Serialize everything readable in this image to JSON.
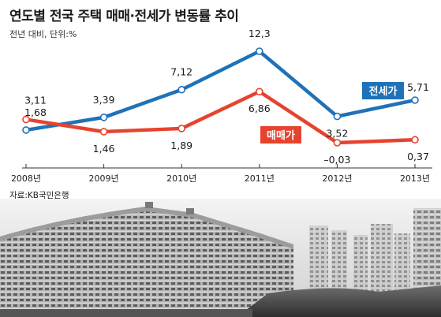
{
  "header": {
    "title": "연도별 전국 주택 매매·전세가 변동률 추이",
    "subtitle": "전년 대비, 단위:%"
  },
  "source": "자료:KB국민은행",
  "colors": {
    "jeonse": "#1f72b8",
    "maemae": "#e6432f",
    "axis": "#333333"
  },
  "chart_data": {
    "type": "line",
    "x": [
      "2008년",
      "2009년",
      "2010년",
      "2011년",
      "2012년",
      "2013년"
    ],
    "series": [
      {
        "name": "전세가",
        "values": [
          1.68,
          3.39,
          7.12,
          12.3,
          3.52,
          5.71
        ],
        "labels": [
          "1,68",
          "3,39",
          "7,12",
          "12,3",
          "3,52",
          "5,71"
        ]
      },
      {
        "name": "매매가",
        "values": [
          3.11,
          1.46,
          1.89,
          6.86,
          -0.03,
          0.37
        ],
        "labels": [
          "3,11",
          "1,46",
          "1,89",
          "6,86",
          "–0,03",
          "0,37"
        ]
      }
    ],
    "title": "연도별 전국 주택 매매·전세가 변동률 추이",
    "xlabel": "",
    "ylabel": "",
    "ylim": [
      -0.03,
      12.3
    ],
    "grid": false,
    "legend": "inline labels"
  }
}
